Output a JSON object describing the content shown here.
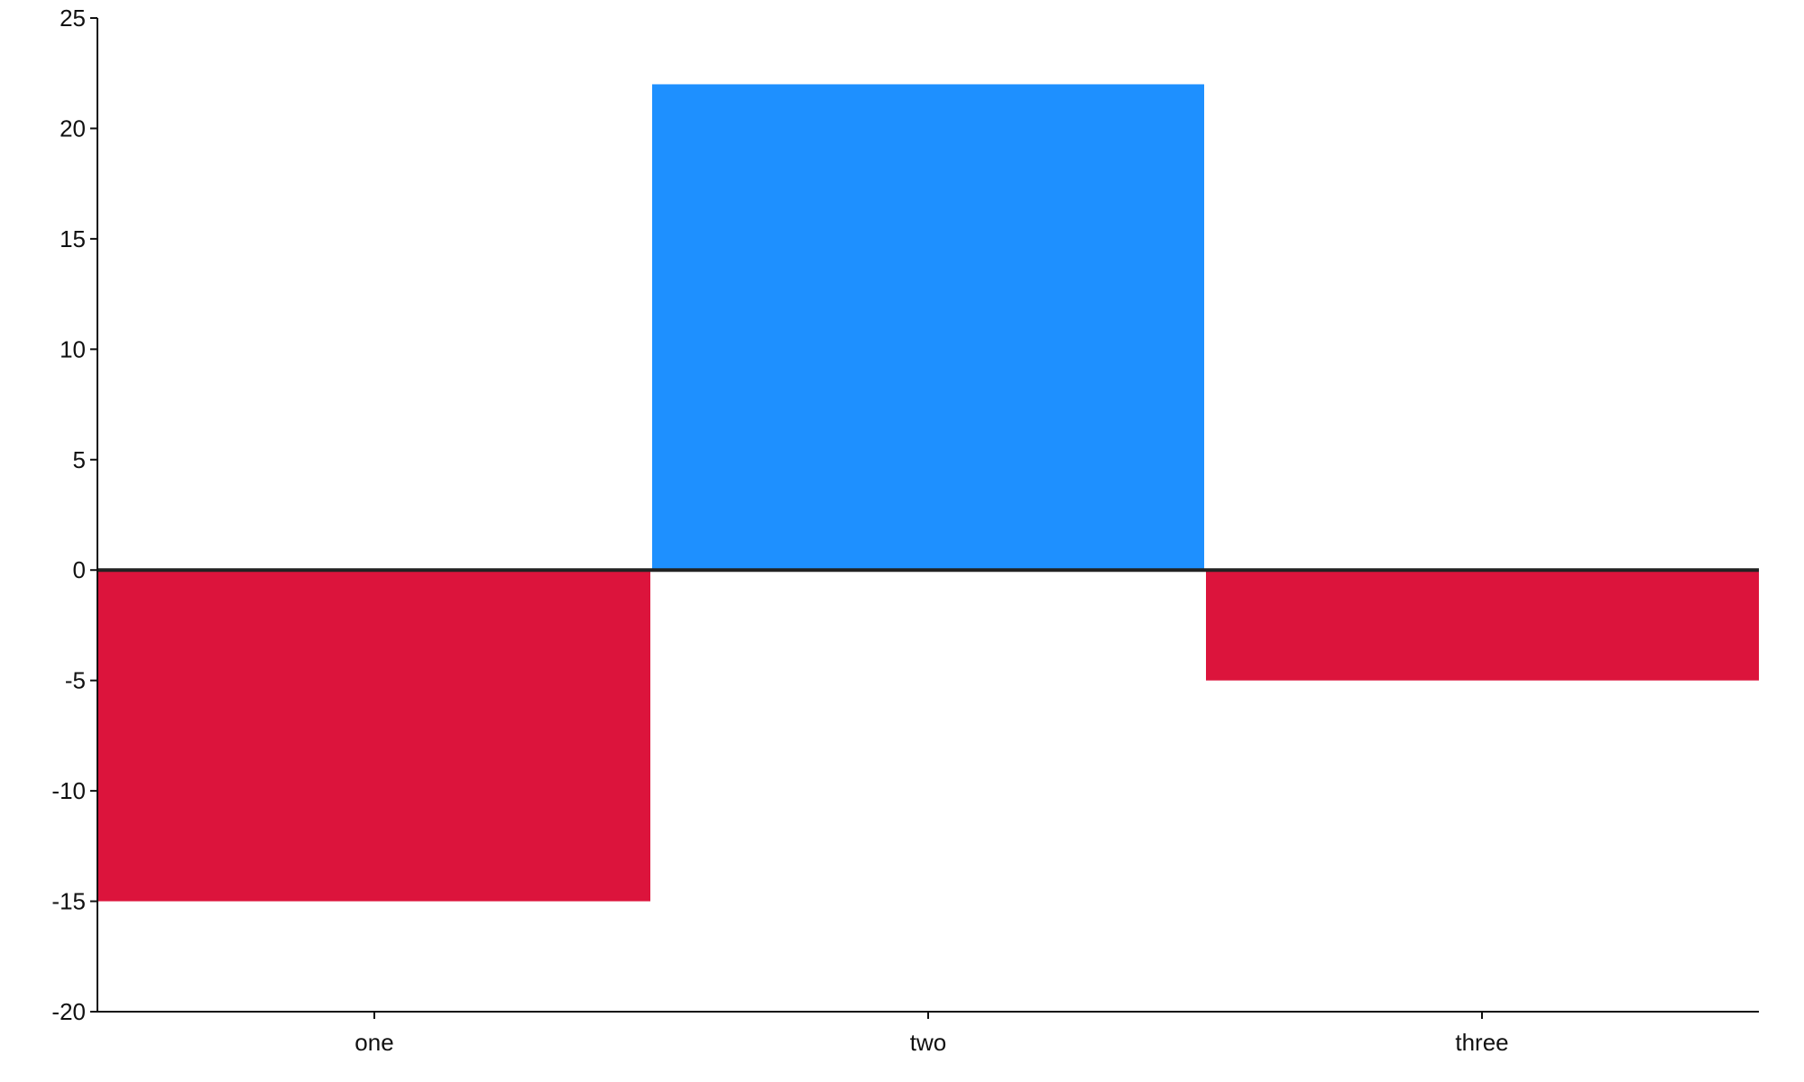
{
  "chart_data": {
    "type": "bar",
    "categories": [
      "one",
      "two",
      "three"
    ],
    "values": [
      -15,
      22,
      -5
    ],
    "ylim": [
      -20,
      25
    ],
    "yticks": [
      -20,
      -15,
      -10,
      -5,
      0,
      5,
      10,
      15,
      20,
      25
    ],
    "grid": false,
    "title": "",
    "xlabel": "",
    "ylabel": "",
    "colors": {
      "positive": "#1e90ff",
      "negative": "#dc143c",
      "zero_line": "#222222",
      "axis": "#111111"
    }
  }
}
